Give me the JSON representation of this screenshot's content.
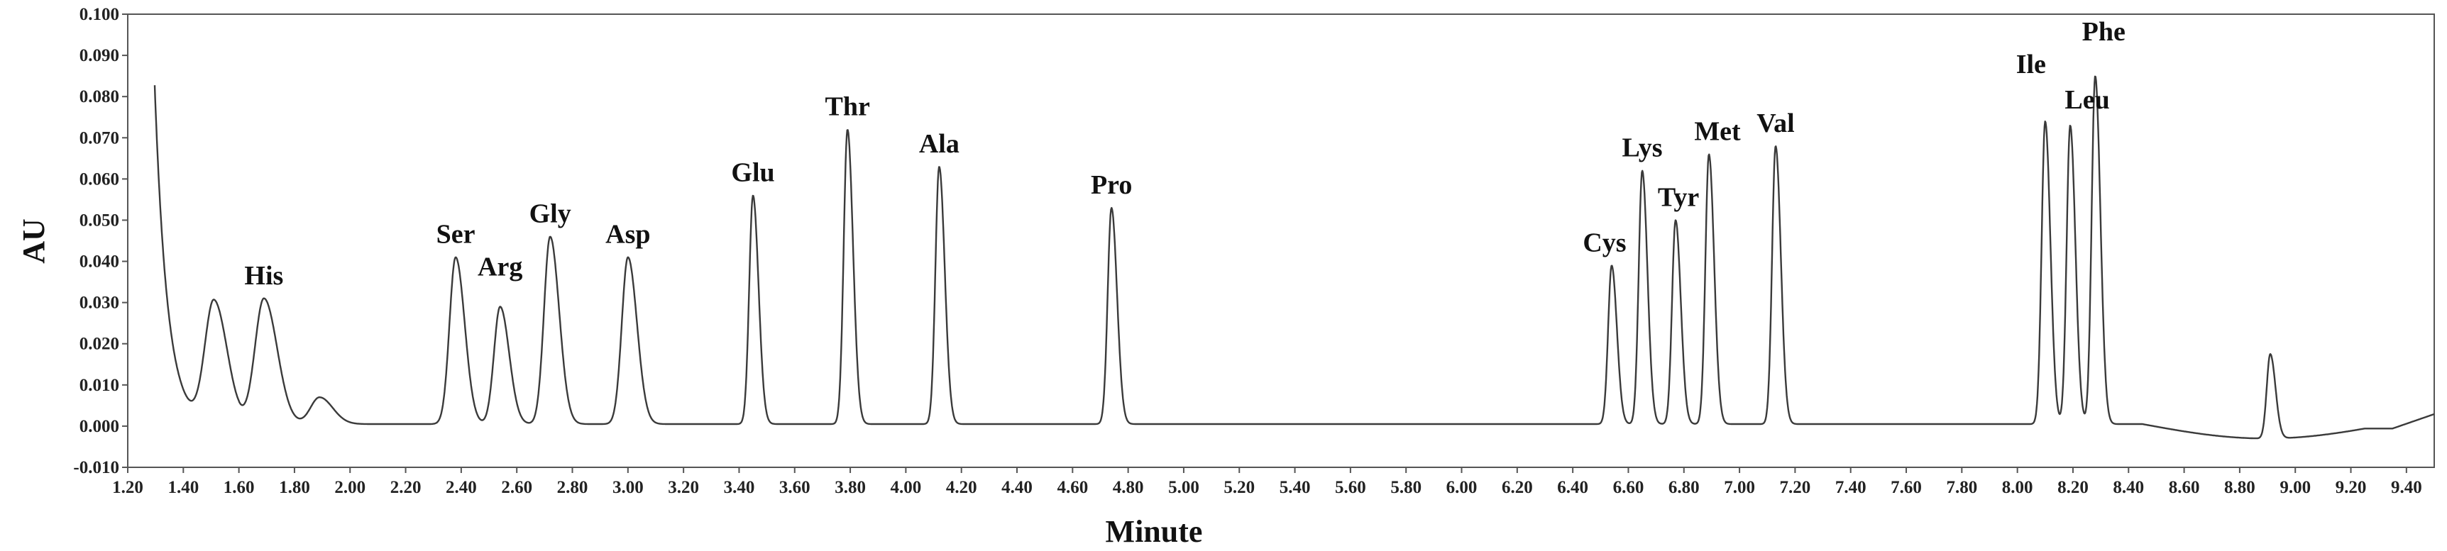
{
  "chart_data": {
    "type": "line",
    "title": "",
    "xlabel": "Minute",
    "ylabel": "AU",
    "xlim": [
      1.2,
      9.5
    ],
    "ylim": [
      -0.01,
      0.1
    ],
    "grid": false,
    "x_ticks": [
      "1.20",
      "1.40",
      "1.60",
      "1.80",
      "2.00",
      "2.20",
      "2.40",
      "2.60",
      "2.80",
      "3.00",
      "3.20",
      "3.40",
      "3.60",
      "3.80",
      "4.00",
      "4.20",
      "4.40",
      "4.60",
      "4.80",
      "5.00",
      "5.20",
      "5.40",
      "5.60",
      "5.80",
      "6.00",
      "6.20",
      "6.40",
      "6.60",
      "6.80",
      "7.00",
      "7.20",
      "7.40",
      "7.60",
      "7.80",
      "8.00",
      "8.20",
      "8.40",
      "8.60",
      "8.80",
      "9.00",
      "9.20",
      "9.40"
    ],
    "y_ticks": [
      "-0.010",
      "0.000",
      "0.010",
      "0.020",
      "0.030",
      "0.040",
      "0.050",
      "0.060",
      "0.070",
      "0.080",
      "0.090",
      "0.100"
    ],
    "baseline": 0.0005,
    "series": [
      {
        "color": "#3a3a3a",
        "peaks": [
          {
            "name": "",
            "rt": 1.51,
            "height": 0.03
          },
          {
            "name": "His",
            "rt": 1.69,
            "height": 0.031
          },
          {
            "name": "",
            "rt": 1.89,
            "height": 0.007
          },
          {
            "name": "Ser",
            "rt": 2.38,
            "height": 0.041
          },
          {
            "name": "Arg",
            "rt": 2.54,
            "height": 0.029
          },
          {
            "name": "Gly",
            "rt": 2.72,
            "height": 0.046
          },
          {
            "name": "Asp",
            "rt": 3.0,
            "height": 0.041
          },
          {
            "name": "Glu",
            "rt": 3.45,
            "height": 0.056
          },
          {
            "name": "Thr",
            "rt": 3.79,
            "height": 0.072
          },
          {
            "name": "Ala",
            "rt": 4.12,
            "height": 0.063
          },
          {
            "name": "Pro",
            "rt": 4.74,
            "height": 0.053
          },
          {
            "name": "Cys",
            "rt": 6.54,
            "height": 0.039
          },
          {
            "name": "Lys",
            "rt": 6.65,
            "height": 0.062
          },
          {
            "name": "Tyr",
            "rt": 6.77,
            "height": 0.05
          },
          {
            "name": "Met",
            "rt": 6.89,
            "height": 0.066
          },
          {
            "name": "Val",
            "rt": 7.13,
            "height": 0.068
          },
          {
            "name": "Ile",
            "rt": 8.1,
            "height": 0.074
          },
          {
            "name": "Leu",
            "rt": 8.19,
            "height": 0.073
          },
          {
            "name": "Phe",
            "rt": 8.28,
            "height": 0.085
          },
          {
            "name": "",
            "rt": 8.91,
            "height": 0.021
          }
        ]
      }
    ]
  }
}
